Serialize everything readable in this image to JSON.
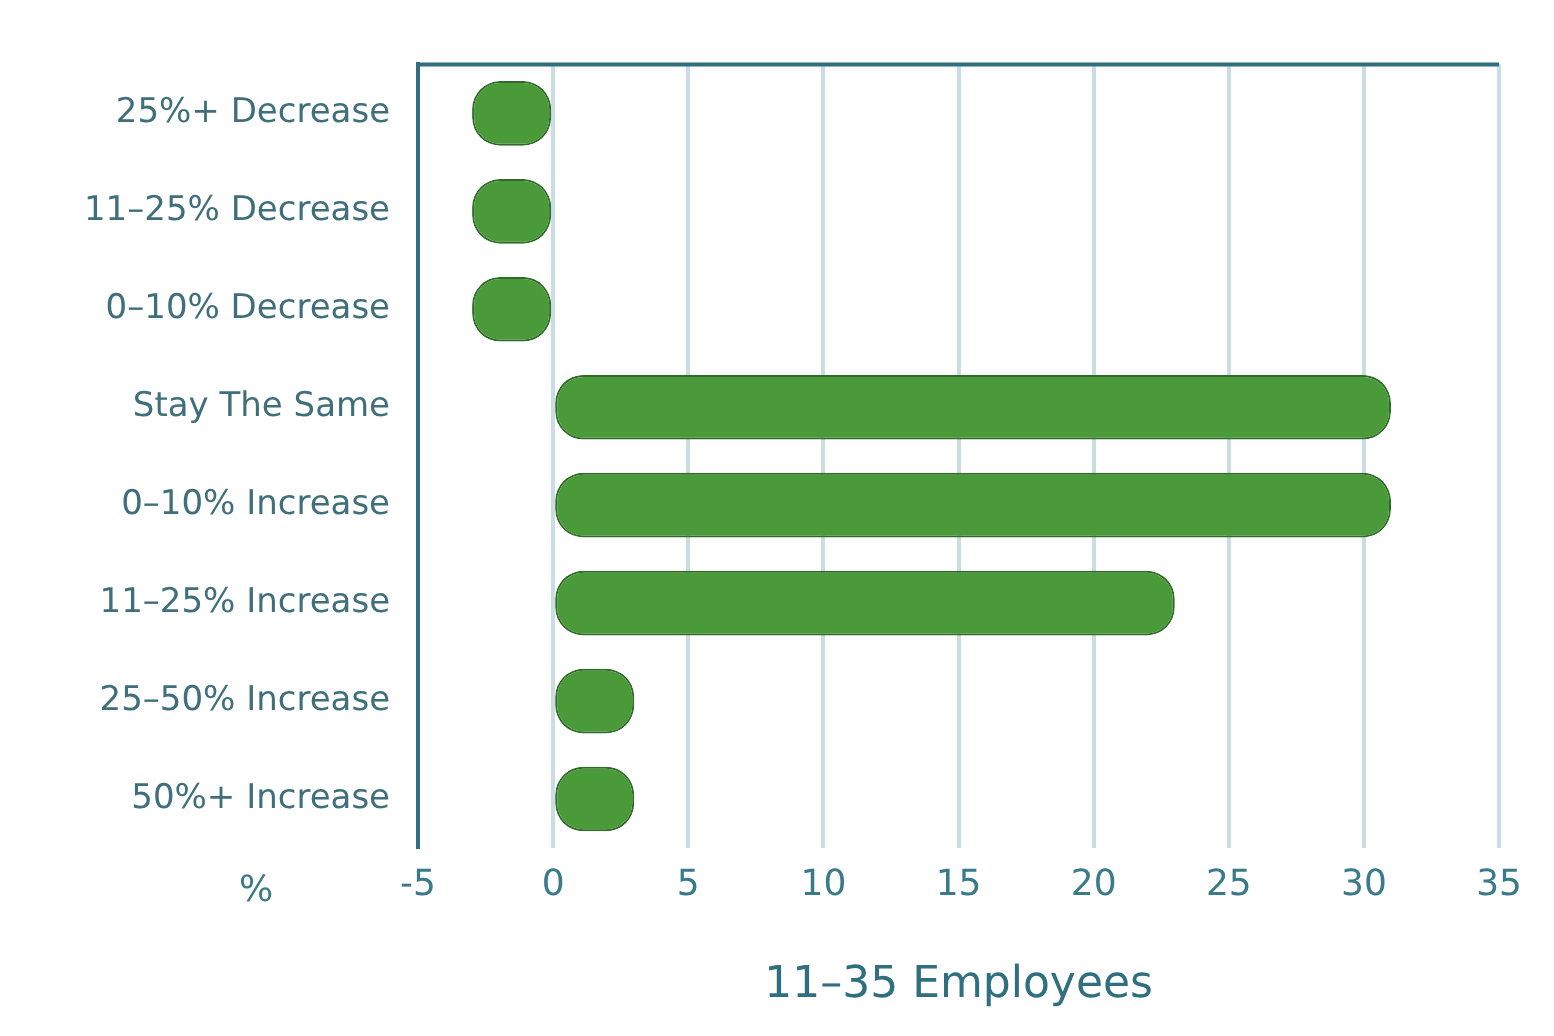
{
  "chart_data": {
    "type": "bar",
    "orientation": "horizontal",
    "xlabel": "11–35 Employees",
    "annotations": [
      "%"
    ],
    "categories": [
      "25%+ Decrease",
      "11–25% Decrease",
      "0–10% Decrease",
      "Stay The Same",
      "0–10% Increase",
      "11–25% Increase",
      "25–50% Increase",
      "50%+ Increase"
    ],
    "values": [
      -3,
      -3,
      -3,
      31,
      31,
      23,
      3,
      3
    ],
    "color": "#4a9a3a",
    "xlim": [
      -5,
      35
    ],
    "xticks": [
      -5,
      0,
      5,
      10,
      15,
      20,
      25,
      30,
      35
    ],
    "grid": "x",
    "legend": false
  }
}
